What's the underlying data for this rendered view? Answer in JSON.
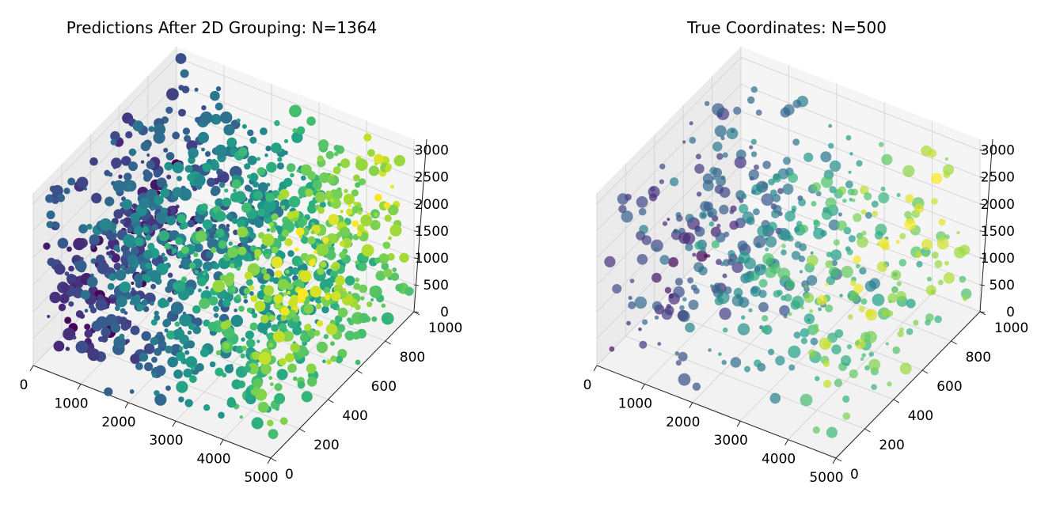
{
  "chart_data": [
    {
      "type": "scatter",
      "projection": "3d",
      "title": "Predictions After 2D Grouping: N=1364",
      "x_range": [
        0,
        5000
      ],
      "y_range": [
        0,
        1000
      ],
      "z_range": [
        0,
        3200
      ],
      "x_ticks": [
        "0",
        "1000",
        "2000",
        "3000",
        "4000",
        "5000"
      ],
      "y_ticks": [
        "0",
        "200",
        "400",
        "600",
        "800",
        "1000"
      ],
      "z_ticks": [
        "0",
        "500",
        "1000",
        "1500",
        "2000",
        "2500",
        "3000"
      ],
      "grid": true,
      "colormap": "viridis",
      "point_count": 1364,
      "seed": 1364,
      "alpha": 1.0
    },
    {
      "type": "scatter",
      "projection": "3d",
      "title": "True Coordinates: N=500",
      "x_range": [
        0,
        5000
      ],
      "y_range": [
        0,
        1000
      ],
      "z_range": [
        0,
        3200
      ],
      "x_ticks": [
        "0",
        "1000",
        "2000",
        "3000",
        "4000",
        "5000"
      ],
      "y_ticks": [
        "0",
        "200",
        "400",
        "600",
        "800",
        "1000"
      ],
      "z_ticks": [
        "0",
        "500",
        "1000",
        "1500",
        "2000",
        "2500",
        "3000"
      ],
      "grid": true,
      "colormap": "viridis",
      "point_count": 500,
      "seed": 500,
      "alpha": 0.7
    }
  ]
}
